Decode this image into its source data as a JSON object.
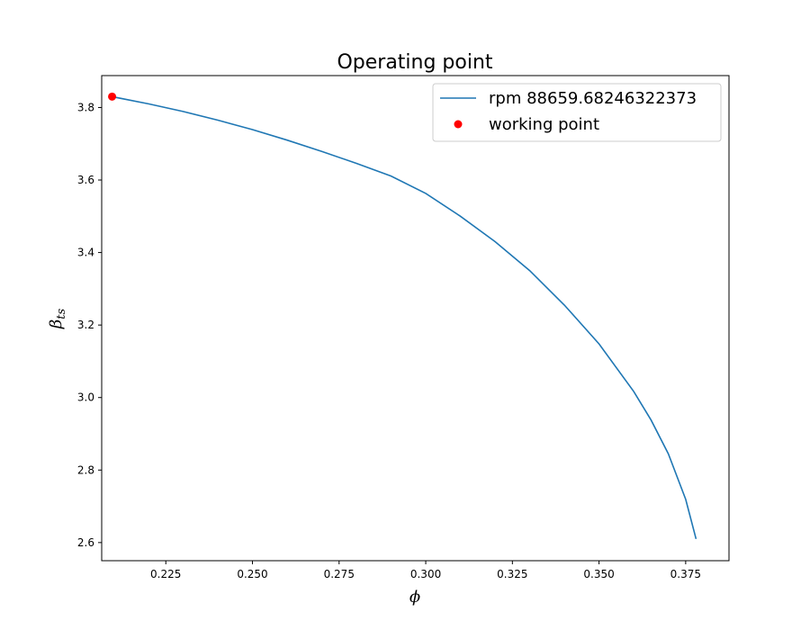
{
  "chart_data": {
    "type": "line",
    "title": "Operating point",
    "xlabel": "ϕ",
    "ylabel_main": "β",
    "ylabel_sub": "ts",
    "xlim": [
      0.2065,
      0.3875
    ],
    "ylim": [
      2.55,
      3.888
    ],
    "x_ticks": [
      0.225,
      0.25,
      0.275,
      0.3,
      0.325,
      0.35,
      0.375
    ],
    "x_tick_labels": [
      "0.225",
      "0.250",
      "0.275",
      "0.300",
      "0.325",
      "0.350",
      "0.375"
    ],
    "y_ticks": [
      2.6,
      2.8,
      3.0,
      3.2,
      3.4,
      3.6,
      3.8
    ],
    "y_tick_labels": [
      "2.6",
      "2.8",
      "3.0",
      "3.2",
      "3.4",
      "3.6",
      "3.8"
    ],
    "grid": false,
    "legend_position": "top-right",
    "series": [
      {
        "name": "rpm 88659.68246322373",
        "kind": "line",
        "color": "#1f77b4",
        "x": [
          0.2095,
          0.22,
          0.23,
          0.24,
          0.25,
          0.26,
          0.27,
          0.28,
          0.29,
          0.3,
          0.31,
          0.32,
          0.33,
          0.34,
          0.35,
          0.36,
          0.365,
          0.37,
          0.375,
          0.378
        ],
        "y": [
          3.83,
          3.81,
          3.789,
          3.765,
          3.739,
          3.71,
          3.679,
          3.646,
          3.611,
          3.563,
          3.5,
          3.43,
          3.35,
          3.255,
          3.148,
          3.017,
          2.938,
          2.845,
          2.719,
          2.61
        ]
      },
      {
        "name": "working point",
        "kind": "marker",
        "color": "#ff0000",
        "x": [
          0.2095
        ],
        "y": [
          3.83
        ]
      }
    ]
  }
}
